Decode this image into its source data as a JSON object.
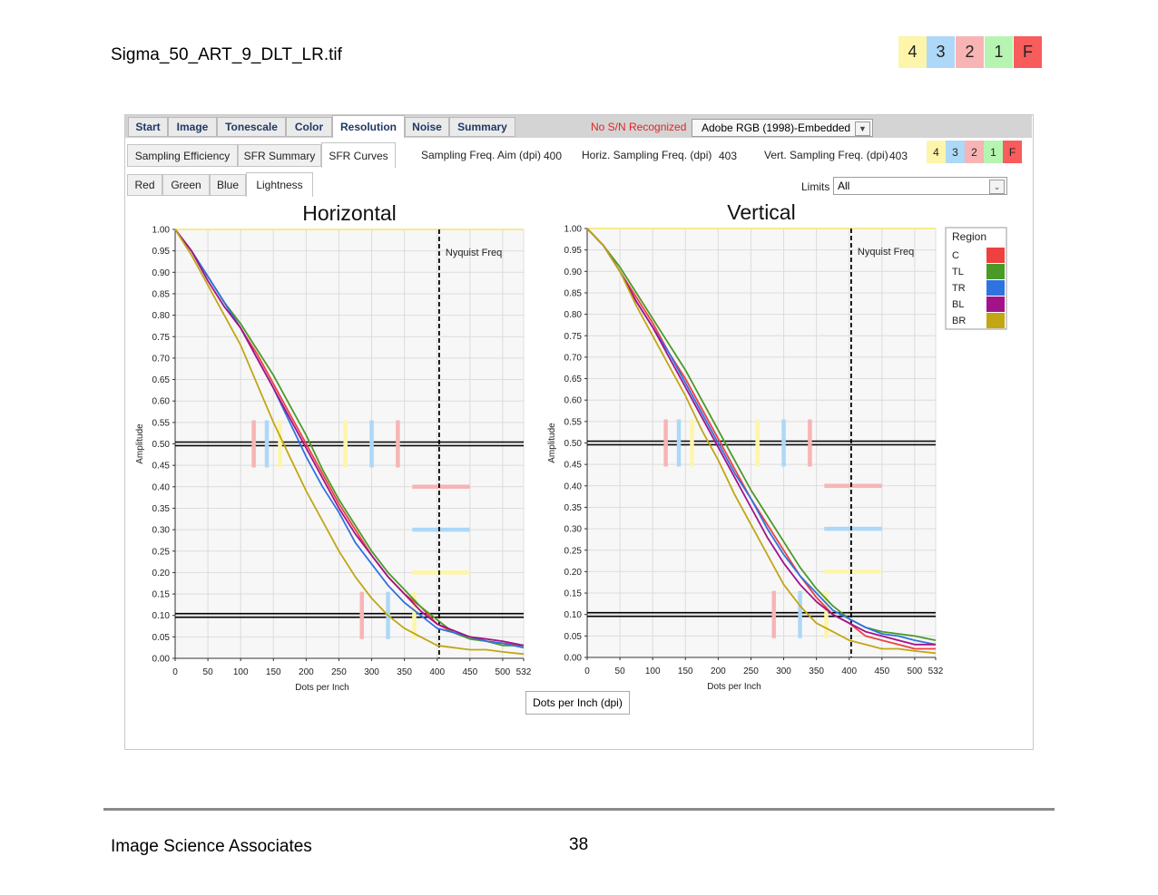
{
  "document": {
    "title": "Sigma_50_ART_9_DLT_LR.tif",
    "footer_left": "Image Science Associates",
    "page_number": "38"
  },
  "grades": [
    {
      "label": "4",
      "color": "#fdf5a9"
    },
    {
      "label": "3",
      "color": "#add8f7"
    },
    {
      "label": "2",
      "color": "#f8b4b4"
    },
    {
      "label": "1",
      "color": "#b6f5b1"
    },
    {
      "label": "F",
      "color": "#f85c5c"
    }
  ],
  "main_tabs": [
    "Start",
    "Image",
    "Tonescale",
    "Color",
    "Resolution",
    "Noise",
    "Summary"
  ],
  "main_tab_active": "Resolution",
  "status_text": "No S/N Recognized",
  "color_profile": "Adobe RGB (1998)-Embedded",
  "sub_tabs": [
    "Sampling Efficiency",
    "SFR Summary",
    "SFR Curves"
  ],
  "sub_tab_active": "SFR Curves",
  "sampling": {
    "aim_label": "Sampling Freq. Aim (dpi)",
    "aim_value": "400",
    "horiz_label": "Horiz. Sampling Freq. (dpi)",
    "horiz_value": "403",
    "vert_label": "Vert. Sampling Freq. (dpi)",
    "vert_value": "403"
  },
  "channel_tabs": [
    "Red",
    "Green",
    "Blue",
    "Lightness"
  ],
  "channel_tab_active": "Lightness",
  "limits": {
    "label": "Limits",
    "value": "All"
  },
  "x_unit_label": "Dots per Inch (dpi)",
  "legend": {
    "title": "Region",
    "entries": [
      {
        "name": "C",
        "color": "#ef4040"
      },
      {
        "name": "TL",
        "color": "#4a9a27"
      },
      {
        "name": "TR",
        "color": "#2f73e0"
      },
      {
        "name": "BL",
        "color": "#a3128a"
      },
      {
        "name": "BR",
        "color": "#c2a614"
      }
    ]
  },
  "chart_data": [
    {
      "type": "line",
      "title": "Horizontal",
      "xlabel": "Dots per Inch",
      "ylabel": "Amplitude",
      "xlim": [
        0,
        532
      ],
      "ylim": [
        0,
        1
      ],
      "xticks": [
        0,
        50,
        100,
        150,
        200,
        250,
        300,
        350,
        400,
        450,
        500,
        532
      ],
      "yticks": [
        0,
        0.05,
        0.1,
        0.15,
        0.2,
        0.25,
        0.3,
        0.35,
        0.4,
        0.45,
        0.5,
        0.55,
        0.6,
        0.65,
        0.7,
        0.75,
        0.8,
        0.85,
        0.9,
        0.95,
        1.0
      ],
      "grid": true,
      "annotation": {
        "text": "Nyquist Freq",
        "x": 403
      },
      "reference_lines_y": [
        0.5,
        0.1
      ],
      "series": [
        {
          "name": "C",
          "color": "#ef4040",
          "x": [
            0,
            25,
            50,
            75,
            100,
            125,
            150,
            175,
            200,
            225,
            250,
            275,
            300,
            325,
            350,
            375,
            400,
            425,
            450,
            475,
            500,
            532
          ],
          "y": [
            1.0,
            0.95,
            0.89,
            0.83,
            0.77,
            0.71,
            0.64,
            0.57,
            0.5,
            0.43,
            0.36,
            0.3,
            0.24,
            0.19,
            0.15,
            0.12,
            0.08,
            0.06,
            0.05,
            0.04,
            0.035,
            0.03
          ]
        },
        {
          "name": "TL",
          "color": "#4a9a27",
          "x": [
            0,
            25,
            50,
            75,
            100,
            125,
            150,
            175,
            200,
            225,
            250,
            275,
            300,
            325,
            350,
            375,
            400,
            425,
            450,
            475,
            500,
            532
          ],
          "y": [
            1.0,
            0.95,
            0.89,
            0.83,
            0.78,
            0.72,
            0.66,
            0.59,
            0.52,
            0.44,
            0.37,
            0.31,
            0.25,
            0.2,
            0.16,
            0.12,
            0.09,
            0.06,
            0.045,
            0.04,
            0.03,
            0.03
          ]
        },
        {
          "name": "TR",
          "color": "#2f73e0",
          "x": [
            0,
            25,
            50,
            75,
            100,
            125,
            150,
            175,
            200,
            225,
            250,
            275,
            300,
            325,
            350,
            375,
            400,
            425,
            450,
            475,
            500,
            532
          ],
          "y": [
            1.0,
            0.95,
            0.89,
            0.83,
            0.77,
            0.7,
            0.63,
            0.55,
            0.47,
            0.4,
            0.34,
            0.27,
            0.22,
            0.17,
            0.13,
            0.1,
            0.07,
            0.06,
            0.05,
            0.04,
            0.035,
            0.025
          ]
        },
        {
          "name": "BL",
          "color": "#a3128a",
          "x": [
            0,
            25,
            50,
            75,
            100,
            125,
            150,
            175,
            200,
            225,
            250,
            275,
            300,
            325,
            350,
            375,
            400,
            425,
            450,
            475,
            500,
            532
          ],
          "y": [
            1.0,
            0.95,
            0.88,
            0.82,
            0.77,
            0.7,
            0.63,
            0.56,
            0.49,
            0.42,
            0.35,
            0.29,
            0.24,
            0.19,
            0.15,
            0.11,
            0.08,
            0.065,
            0.05,
            0.045,
            0.04,
            0.03
          ]
        },
        {
          "name": "BR",
          "color": "#c2a614",
          "x": [
            0,
            25,
            50,
            75,
            100,
            125,
            150,
            175,
            200,
            225,
            250,
            275,
            300,
            325,
            350,
            375,
            400,
            425,
            450,
            475,
            500,
            532
          ],
          "y": [
            1.0,
            0.94,
            0.87,
            0.8,
            0.73,
            0.64,
            0.55,
            0.47,
            0.39,
            0.32,
            0.25,
            0.19,
            0.14,
            0.1,
            0.07,
            0.05,
            0.03,
            0.025,
            0.02,
            0.02,
            0.015,
            0.01
          ]
        }
      ]
    },
    {
      "type": "line",
      "title": "Vertical",
      "xlabel": "Dots per Inch",
      "ylabel": "Amplitude",
      "xlim": [
        0,
        532
      ],
      "ylim": [
        0,
        1
      ],
      "xticks": [
        0,
        50,
        100,
        150,
        200,
        250,
        300,
        350,
        400,
        450,
        500,
        532
      ],
      "yticks": [
        0,
        0.05,
        0.1,
        0.15,
        0.2,
        0.25,
        0.3,
        0.35,
        0.4,
        0.45,
        0.5,
        0.55,
        0.6,
        0.65,
        0.7,
        0.75,
        0.8,
        0.85,
        0.9,
        0.95,
        1.0
      ],
      "grid": true,
      "annotation": {
        "text": "Nyquist Freq",
        "x": 403
      },
      "reference_lines_y": [
        0.5,
        0.1
      ],
      "series": [
        {
          "name": "C",
          "color": "#ef4040",
          "x": [
            0,
            25,
            50,
            75,
            100,
            125,
            150,
            175,
            200,
            225,
            250,
            275,
            300,
            325,
            350,
            375,
            400,
            425,
            450,
            475,
            500,
            532
          ],
          "y": [
            1.0,
            0.96,
            0.9,
            0.84,
            0.78,
            0.71,
            0.65,
            0.58,
            0.51,
            0.44,
            0.37,
            0.31,
            0.25,
            0.19,
            0.14,
            0.1,
            0.08,
            0.05,
            0.04,
            0.03,
            0.02,
            0.02
          ]
        },
        {
          "name": "TL",
          "color": "#4a9a27",
          "x": [
            0,
            25,
            50,
            75,
            100,
            125,
            150,
            175,
            200,
            225,
            250,
            275,
            300,
            325,
            350,
            375,
            400,
            425,
            450,
            475,
            500,
            532
          ],
          "y": [
            1.0,
            0.96,
            0.91,
            0.85,
            0.79,
            0.73,
            0.67,
            0.6,
            0.53,
            0.46,
            0.39,
            0.33,
            0.27,
            0.21,
            0.16,
            0.12,
            0.09,
            0.07,
            0.06,
            0.055,
            0.05,
            0.04
          ]
        },
        {
          "name": "TR",
          "color": "#2f73e0",
          "x": [
            0,
            25,
            50,
            75,
            100,
            125,
            150,
            175,
            200,
            225,
            250,
            275,
            300,
            325,
            350,
            375,
            400,
            425,
            450,
            475,
            500,
            532
          ],
          "y": [
            1.0,
            0.96,
            0.9,
            0.83,
            0.77,
            0.71,
            0.64,
            0.57,
            0.5,
            0.43,
            0.37,
            0.3,
            0.24,
            0.19,
            0.15,
            0.11,
            0.09,
            0.07,
            0.055,
            0.05,
            0.04,
            0.03
          ]
        },
        {
          "name": "BL",
          "color": "#a3128a",
          "x": [
            0,
            25,
            50,
            75,
            100,
            125,
            150,
            175,
            200,
            225,
            250,
            275,
            300,
            325,
            350,
            375,
            400,
            425,
            450,
            475,
            500,
            532
          ],
          "y": [
            1.0,
            0.96,
            0.9,
            0.83,
            0.77,
            0.7,
            0.63,
            0.56,
            0.49,
            0.42,
            0.35,
            0.28,
            0.22,
            0.17,
            0.13,
            0.1,
            0.08,
            0.06,
            0.05,
            0.04,
            0.03,
            0.03
          ]
        },
        {
          "name": "BR",
          "color": "#c2a614",
          "x": [
            0,
            25,
            50,
            75,
            100,
            125,
            150,
            175,
            200,
            225,
            250,
            275,
            300,
            325,
            350,
            375,
            400,
            425,
            450,
            475,
            500,
            532
          ],
          "y": [
            1.0,
            0.96,
            0.9,
            0.82,
            0.75,
            0.68,
            0.61,
            0.53,
            0.46,
            0.38,
            0.31,
            0.24,
            0.17,
            0.12,
            0.08,
            0.06,
            0.04,
            0.03,
            0.02,
            0.02,
            0.015,
            0.01
          ]
        }
      ]
    }
  ],
  "limit_markers": {
    "markers_050": [
      {
        "x": 120,
        "color": "#f8b4b4"
      },
      {
        "x": 140,
        "color": "#add8f7"
      },
      {
        "x": 160,
        "color": "#fdf5a9"
      },
      {
        "x": 260,
        "color": "#fdf5a9"
      },
      {
        "x": 300,
        "color": "#add8f7"
      },
      {
        "x": 340,
        "color": "#f8b4b4"
      }
    ],
    "markers_010": [
      {
        "x": 285,
        "color": "#f8b4b4"
      },
      {
        "x": 325,
        "color": "#add8f7"
      },
      {
        "x": 365,
        "color": "#fdf5a9"
      }
    ],
    "level_bars": [
      {
        "y": 0.4,
        "color": "#f8b4b4"
      },
      {
        "y": 0.3,
        "color": "#add8f7"
      },
      {
        "y": 0.2,
        "color": "#fdf5a9"
      }
    ]
  }
}
